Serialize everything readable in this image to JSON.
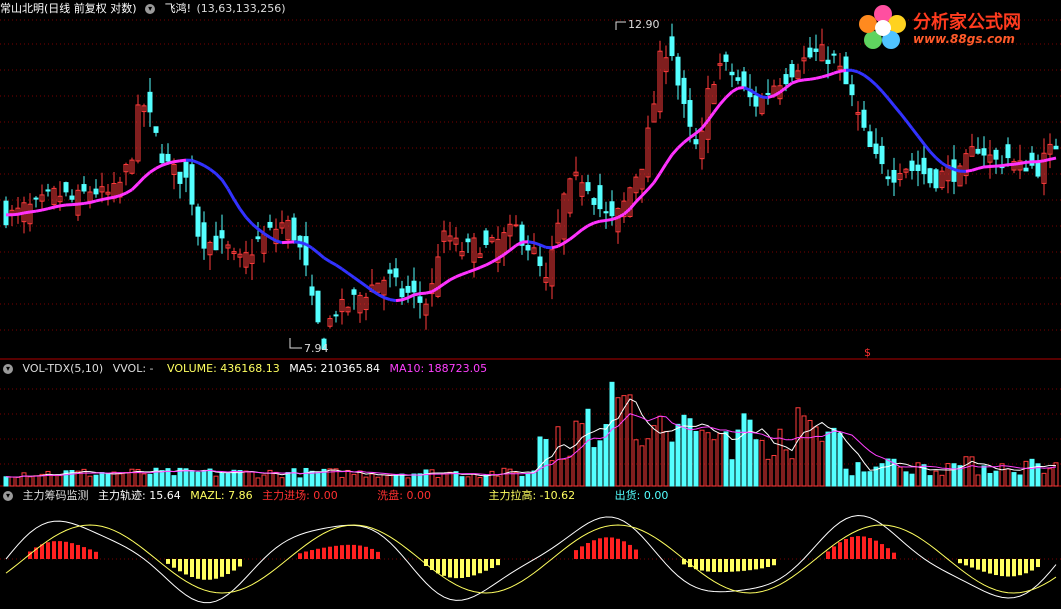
{
  "price_header": {
    "title": "常山北明(日线 前复权 对数)",
    "indicator": "飞鸿!",
    "params": "(13,63,133,256)"
  },
  "price_annotations": {
    "high": "12.90",
    "low": "7.94",
    "marker": "$"
  },
  "volume_header": {
    "name": "VOL-TDX(5,10)",
    "vvol": "VVOL: -",
    "volume": "VOLUME: 436168.13",
    "ma5": "MA5: 210365.84",
    "ma10": "MA10: 188723.05"
  },
  "fund_header": {
    "name": "主力筹码监测",
    "track": "主力轨迹: 15.64",
    "mazl": "MAZL: 7.86",
    "enter": "主力进场: 0.00",
    "wash": "洗盘: 0.00",
    "pull": "主力拉高: -10.62",
    "ship": "出货: 0.00"
  },
  "logo": {
    "text": "分析家公式网",
    "url": "www.88gs.com"
  },
  "colors": {
    "up": "#ff3b3b",
    "down": "#54ffff",
    "line_blue": "#3232ff",
    "line_magenta": "#ff32ff",
    "ma5": "#ffffff",
    "ma10": "#ff40ff",
    "grid": "#7a0000",
    "enter": "#ff2020",
    "wash": "#ffff60"
  },
  "chart_data": {
    "type": "candlestick",
    "price_range": [
      7.94,
      12.9
    ],
    "close_path": [
      9.7,
      9.7,
      9.8,
      9.8,
      9.9,
      10.0,
      10.0,
      9.9,
      10.0,
      10.1,
      10.0,
      10.0,
      10.2,
      10.6,
      11.6,
      11.2,
      10.7,
      10.4,
      10.3,
      10.2,
      9.4,
      9.3,
      9.3,
      9.2,
      9.0,
      9.1,
      9.3,
      9.4,
      9.5,
      9.6,
      9.4,
      9.0,
      8.3,
      8.0,
      8.4,
      8.4,
      8.5,
      8.6,
      8.7,
      8.8,
      8.8,
      8.6,
      8.6,
      8.5,
      8.5,
      9.3,
      9.4,
      9.2,
      9.2,
      9.3,
      9.2,
      9.3,
      9.4,
      9.5,
      9.3,
      9.1,
      8.7,
      9.3,
      10.0,
      10.2,
      10.3,
      10.0,
      9.7,
      9.6,
      9.8,
      10.2,
      10.5,
      11.2,
      12.4,
      12.6,
      11.6,
      11.0,
      10.6,
      11.8,
      12.2,
      12.1,
      11.9,
      11.6,
      11.5,
      11.7,
      11.9,
      12.0,
      12.2,
      12.3,
      12.4,
      12.4,
      12.3,
      11.9,
      11.5,
      11.0,
      10.6,
      10.4,
      10.3,
      10.5,
      10.4,
      10.4,
      10.2,
      10.3,
      10.4,
      10.3,
      10.6,
      10.8,
      10.6,
      10.5,
      10.6,
      10.4,
      10.5,
      10.4,
      10.6,
      10.8
    ]
  }
}
